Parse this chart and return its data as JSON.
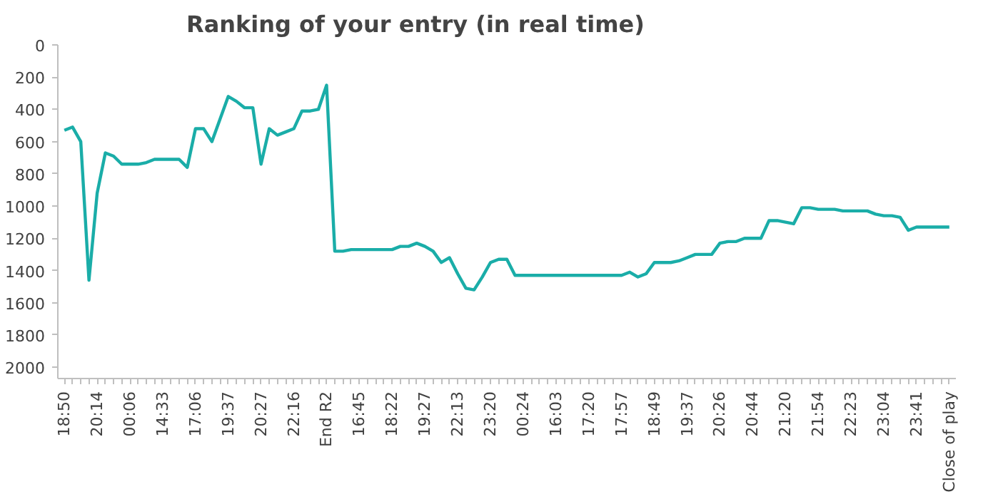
{
  "chart_data": {
    "type": "line",
    "title": "Ranking of your entry (in real time)",
    "categories": [
      "18:50",
      null,
      null,
      null,
      "20:14",
      null,
      null,
      null,
      "00:06",
      null,
      null,
      null,
      "14:33",
      null,
      null,
      null,
      "17:06",
      null,
      null,
      null,
      "19:37",
      null,
      null,
      null,
      "20:27",
      null,
      null,
      null,
      "22:16",
      null,
      null,
      null,
      "End R2",
      null,
      null,
      null,
      "16:45",
      null,
      null,
      null,
      "18:22",
      null,
      null,
      null,
      "19:27",
      null,
      null,
      null,
      "22:13",
      null,
      null,
      null,
      "23:20",
      null,
      null,
      null,
      "00:24",
      null,
      null,
      null,
      "16:03",
      null,
      null,
      null,
      "17:20",
      null,
      null,
      null,
      "17:57",
      null,
      null,
      null,
      "18:49",
      null,
      null,
      null,
      "19:37",
      null,
      null,
      null,
      "20:26",
      null,
      null,
      null,
      "20:44",
      null,
      null,
      null,
      "21:20",
      null,
      null,
      null,
      "21:54",
      null,
      null,
      null,
      "22:23",
      null,
      null,
      null,
      "23:04",
      null,
      null,
      null,
      "23:41",
      null,
      null,
      null,
      "Close of play"
    ],
    "series": [
      {
        "color": "#1aada8",
        "values": [
          530,
          510,
          600,
          1460,
          920,
          670,
          690,
          740,
          740,
          740,
          730,
          710,
          710,
          710,
          710,
          760,
          520,
          520,
          600,
          460,
          320,
          350,
          390,
          390,
          740,
          520,
          560,
          540,
          520,
          410,
          410,
          400,
          250,
          1280,
          1280,
          1270,
          1270,
          1270,
          1270,
          1270,
          1270,
          1250,
          1250,
          1230,
          1250,
          1280,
          1350,
          1320,
          1420,
          1510,
          1520,
          1440,
          1350,
          1330,
          1330,
          1430,
          1430,
          1430,
          1430,
          1430,
          1430,
          1430,
          1430,
          1430,
          1430,
          1430,
          1430,
          1430,
          1430,
          1410,
          1440,
          1420,
          1350,
          1350,
          1350,
          1340,
          1320,
          1300,
          1300,
          1300,
          1230,
          1220,
          1220,
          1200,
          1200,
          1200,
          1090,
          1090,
          1100,
          1110,
          1010,
          1010,
          1020,
          1020,
          1020,
          1030,
          1030,
          1030,
          1030,
          1050,
          1060,
          1060,
          1070,
          1150,
          1130,
          1130,
          1130,
          1130,
          1130
        ]
      }
    ],
    "ylim": [
      2070,
      0
    ],
    "yticks": [
      0,
      200,
      400,
      600,
      800,
      1000,
      1200,
      1400,
      1600,
      1800,
      2000
    ],
    "grid": false,
    "marker": "none",
    "line_style": "solid"
  }
}
